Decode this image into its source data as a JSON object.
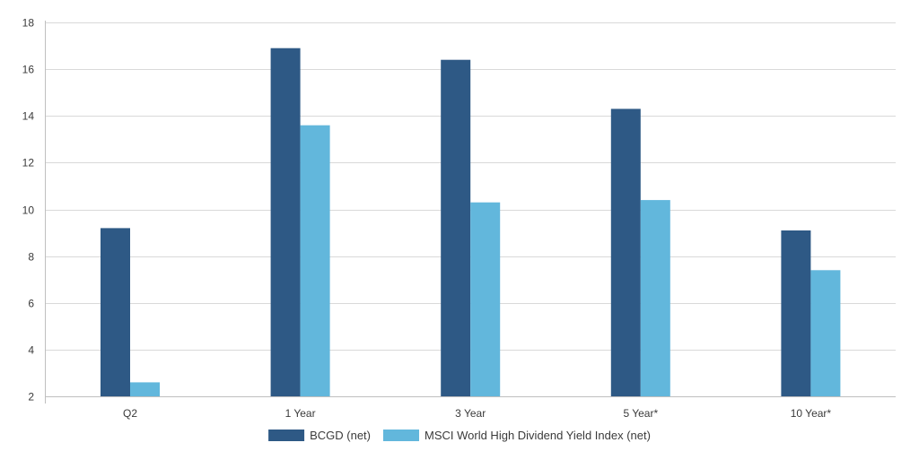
{
  "chart_data": {
    "type": "bar",
    "title": "",
    "xlabel": "",
    "ylabel": "",
    "categories": [
      "Q2",
      "1 Year",
      "3 Year",
      "5 Year*",
      "10 Year*"
    ],
    "series": [
      {
        "name": "BCGD (net)",
        "color": "#2e5985",
        "values": [
          9.2,
          16.9,
          16.4,
          14.3,
          9.1
        ]
      },
      {
        "name": "MSCI World High Dividend Yield Index (net)",
        "color": "#62b7dc",
        "values": [
          2.6,
          13.6,
          10.3,
          10.4,
          7.4
        ]
      }
    ],
    "ylim": [
      2,
      18
    ],
    "yticks": [
      2,
      4,
      6,
      8,
      10,
      12,
      14,
      16,
      18
    ],
    "grid": true,
    "legend_position": "bottom-center"
  }
}
